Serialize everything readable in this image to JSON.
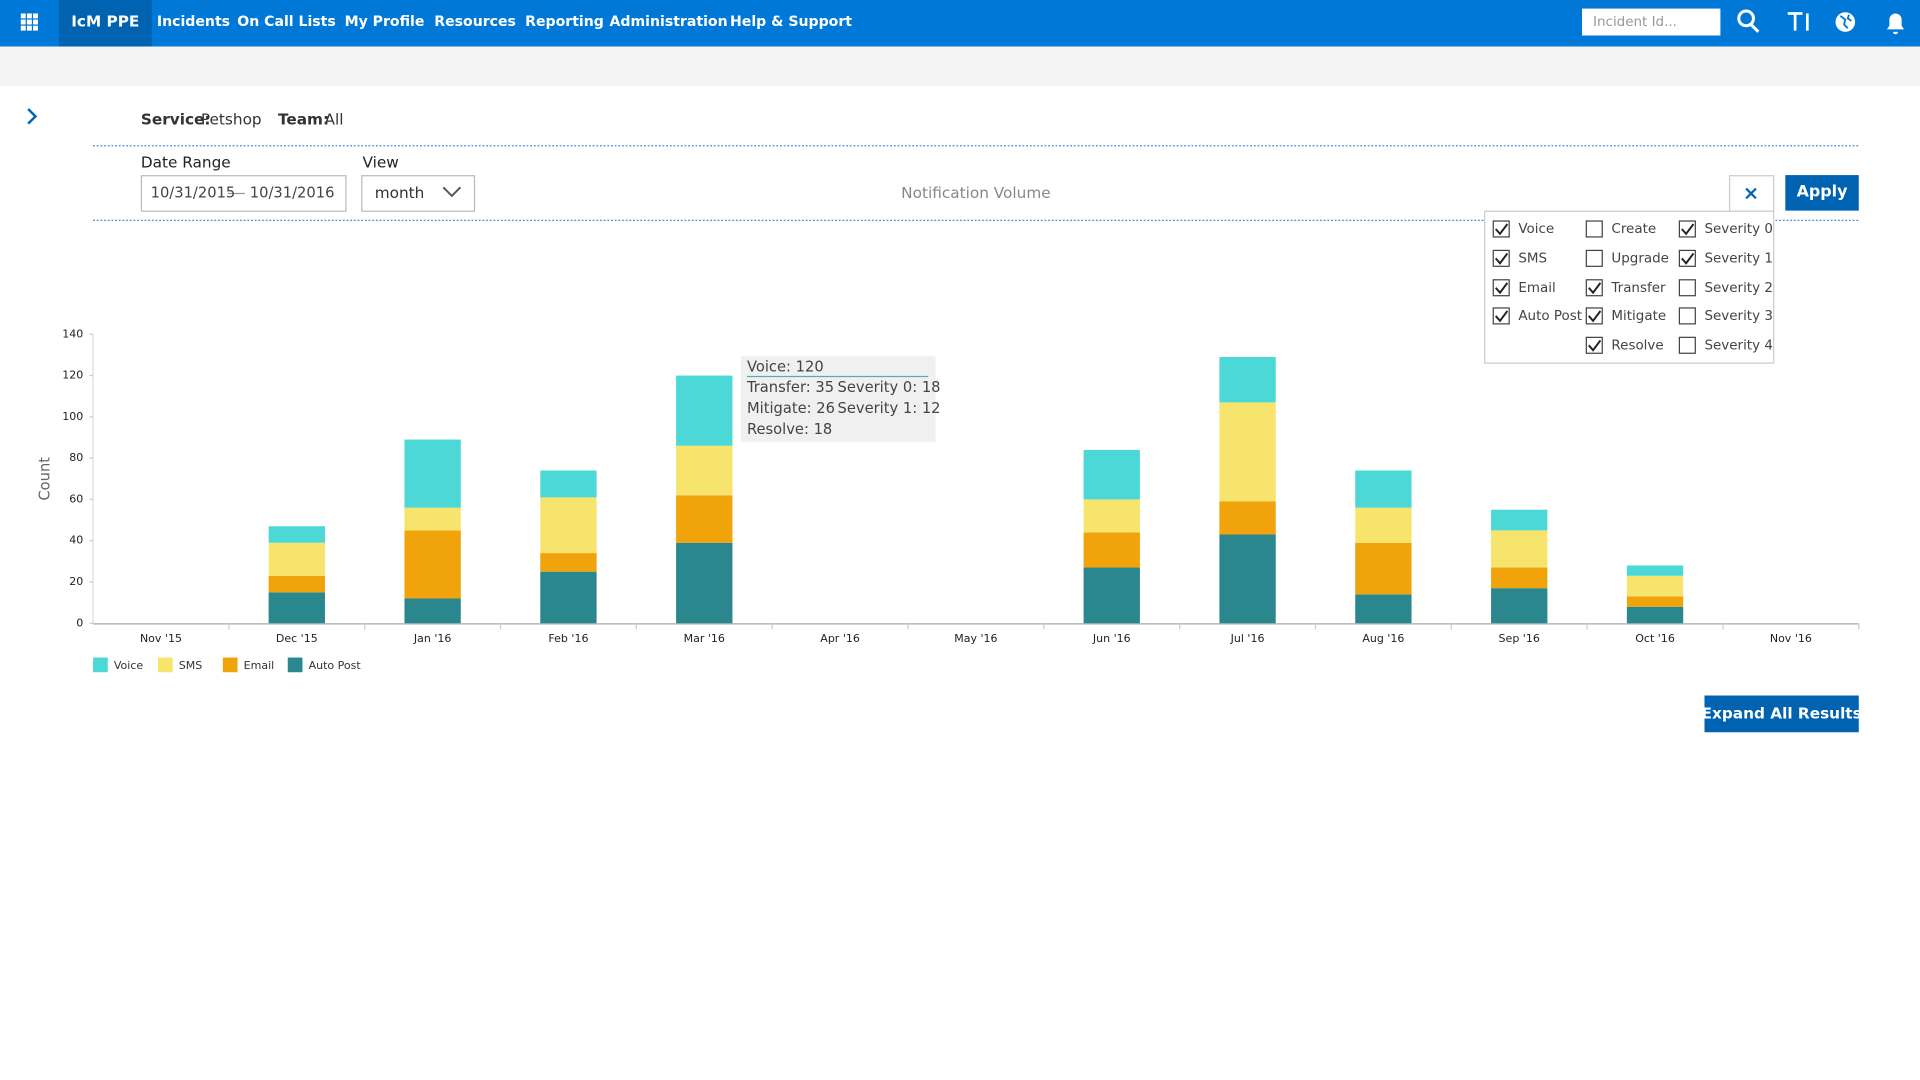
{
  "nav": {
    "brand": "IcM PPE",
    "items": [
      "Incidents",
      "On Call Lists",
      "My Profile",
      "Resources",
      "Reporting",
      "Administration",
      "Help & Support"
    ],
    "search_placeholder": "Incident Id..."
  },
  "filters": {
    "service_label": "Service:",
    "service": "Petshop",
    "team_label": "Team:",
    "team": "All",
    "date_range_label": "Date Range",
    "date_start": "10/31/2015",
    "date_end": "10/31/2016",
    "view_label": "View",
    "view": "month",
    "apply": "Apply"
  },
  "options": [
    [
      {
        "label": "Voice",
        "checked": true
      },
      {
        "label": "SMS",
        "checked": true
      },
      {
        "label": "Email",
        "checked": true
      },
      {
        "label": "Auto Post",
        "checked": true
      }
    ],
    [
      {
        "label": "Create",
        "checked": false
      },
      {
        "label": "Upgrade",
        "checked": false
      },
      {
        "label": "Transfer",
        "checked": true
      },
      {
        "label": "Mitigate",
        "checked": true
      },
      {
        "label": "Resolve",
        "checked": true
      }
    ],
    [
      {
        "label": "Severity 0",
        "checked": true
      },
      {
        "label": "Severity 1",
        "checked": true
      },
      {
        "label": "Severity 2",
        "checked": false
      },
      {
        "label": "Severity 3",
        "checked": false
      },
      {
        "label": "Severity 4",
        "checked": false
      }
    ]
  ],
  "tooltip": {
    "title": "Voice: 120",
    "rows": [
      [
        "Transfer: 35",
        "Severity 0: 18"
      ],
      [
        "Mitigate: 26",
        "Severity 1: 12"
      ],
      [
        "Resolve: 18"
      ]
    ]
  },
  "expand_button": "Expand All Results",
  "chart_data": {
    "type": "stacked_bar",
    "title": "Notification Volume",
    "y_label": "Count",
    "categories": [
      "Nov '15",
      "Dec '15",
      "Jan '16",
      "Feb '16",
      "Mar '16",
      "Apr '16",
      "May '16",
      "Jun '16",
      "Jul '16",
      "Aug '16",
      "Sep '16",
      "Oct '16",
      "Nov '16"
    ],
    "series": [
      {
        "name": "Voice",
        "color": "#4dd8d8",
        "values": [
          0,
          8,
          33,
          13,
          34,
          0,
          0,
          24,
          22,
          18,
          10,
          5,
          0
        ]
      },
      {
        "name": "SMS",
        "color": "#f6e46c",
        "values": [
          0,
          16,
          11,
          27,
          24,
          0,
          0,
          16,
          48,
          17,
          18,
          10,
          0
        ]
      },
      {
        "name": "Email",
        "color": "#f0a30a",
        "values": [
          0,
          8,
          33,
          9,
          23,
          0,
          0,
          17,
          16,
          25,
          10,
          5,
          0
        ]
      },
      {
        "name": "Auto Post",
        "color": "#2a878d",
        "values": [
          0,
          15,
          12,
          25,
          39,
          0,
          0,
          27,
          43,
          14,
          17,
          8,
          0
        ]
      }
    ],
    "ylim": [
      0,
      140
    ],
    "yticks": [
      0,
      20,
      40,
      60,
      80,
      100,
      120,
      140
    ],
    "legend": "bottom-left"
  }
}
